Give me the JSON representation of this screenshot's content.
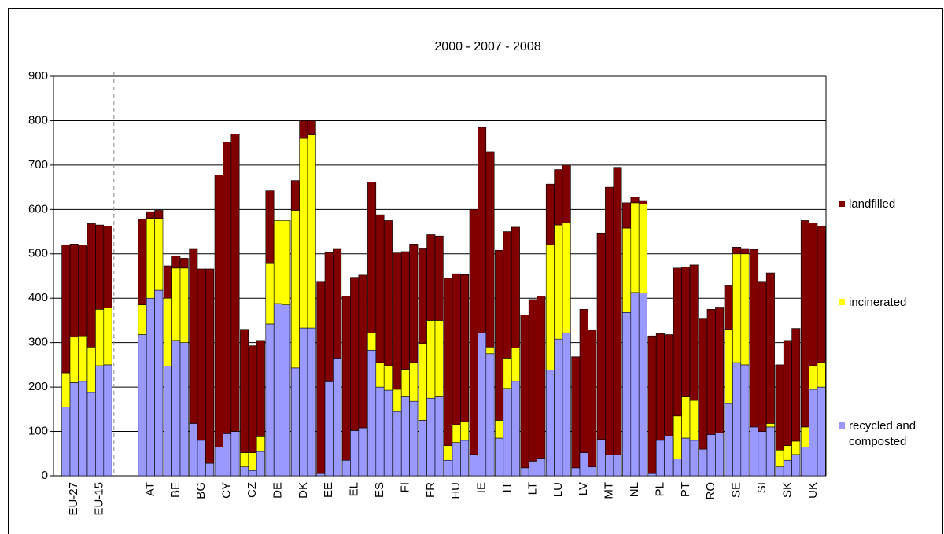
{
  "chart_data": {
    "type": "stacked_bar",
    "title": "2000 - 2007 - 2008",
    "categories": [
      "EU-27",
      "EU-15",
      null,
      "AT",
      "BE",
      "BG",
      "CY",
      "CZ",
      "DE",
      "DK",
      "EE",
      "EL",
      "ES",
      "FI",
      "FR",
      "HU",
      "IE",
      "IT",
      "LT",
      "LU",
      "LV",
      "MT",
      "NL",
      "PL",
      "PT",
      "RO",
      "SE",
      "SI",
      "SK",
      "UK"
    ],
    "series": [
      {
        "name": "recycled and composted",
        "color": "#9999ff",
        "values": [
          [
            155,
            210,
            213
          ],
          [
            188,
            248,
            250
          ],
          null,
          [
            318,
            400,
            418
          ],
          [
            247,
            305,
            300
          ],
          [
            118,
            80,
            28
          ],
          [
            65,
            95,
            100
          ],
          [
            20,
            12,
            55
          ],
          [
            342,
            388,
            385
          ],
          [
            243,
            333,
            333
          ],
          [
            5,
            212,
            265
          ],
          [
            35,
            102,
            108
          ],
          [
            283,
            200,
            193
          ],
          [
            145,
            178,
            168
          ],
          [
            125,
            175,
            178
          ],
          [
            35,
            75,
            80
          ],
          [
            48,
            322,
            275
          ],
          [
            85,
            197,
            213
          ],
          [
            18,
            33,
            40
          ],
          [
            238,
            308,
            322
          ],
          [
            18,
            52,
            20
          ],
          [
            82,
            47,
            47
          ],
          [
            368,
            413,
            412
          ],
          [
            5,
            80,
            90
          ],
          [
            38,
            85,
            80
          ],
          [
            60,
            93,
            97
          ],
          [
            163,
            255,
            250
          ],
          [
            110,
            100,
            110
          ],
          [
            20,
            35,
            48
          ],
          [
            65,
            195,
            200
          ]
        ]
      },
      {
        "name": "incinerated",
        "color": "#ffff00",
        "values": [
          [
            77,
            103,
            102
          ],
          [
            102,
            127,
            128
          ],
          null,
          [
            67,
            180,
            162
          ],
          [
            153,
            163,
            168
          ],
          [
            0,
            0,
            0
          ],
          [
            0,
            0,
            0
          ],
          [
            32,
            40,
            33
          ],
          [
            136,
            187,
            190
          ],
          [
            355,
            427,
            435
          ],
          [
            0,
            0,
            0
          ],
          [
            0,
            0,
            0
          ],
          [
            39,
            55,
            55
          ],
          [
            50,
            62,
            87
          ],
          [
            173,
            175,
            172
          ],
          [
            33,
            40,
            42
          ],
          [
            0,
            0,
            15
          ],
          [
            40,
            68,
            75
          ],
          [
            0,
            0,
            0
          ],
          [
            282,
            257,
            248
          ],
          [
            0,
            0,
            0
          ],
          [
            0,
            0,
            0
          ],
          [
            190,
            202,
            200
          ],
          [
            0,
            0,
            0
          ],
          [
            97,
            93,
            90
          ],
          [
            0,
            0,
            0
          ],
          [
            167,
            245,
            250
          ],
          [
            0,
            0,
            8
          ],
          [
            38,
            33,
            30
          ],
          [
            45,
            53,
            55
          ]
        ]
      },
      {
        "name": "landfilled",
        "color": "#800000",
        "values": [
          [
            288,
            209,
            205
          ],
          [
            278,
            190,
            184
          ],
          null,
          [
            193,
            15,
            18
          ],
          [
            73,
            27,
            22
          ],
          [
            394,
            386,
            438
          ],
          [
            613,
            657,
            670
          ],
          [
            278,
            241,
            217
          ],
          [
            164,
            0,
            0
          ],
          [
            67,
            40,
            32
          ],
          [
            433,
            291,
            247
          ],
          [
            370,
            345,
            344
          ],
          [
            340,
            333,
            327
          ],
          [
            307,
            265,
            267
          ],
          [
            215,
            193,
            190
          ],
          [
            377,
            340,
            331
          ],
          [
            552,
            463,
            440
          ],
          [
            383,
            285,
            272
          ],
          [
            344,
            364,
            365
          ],
          [
            137,
            125,
            130
          ],
          [
            250,
            323,
            308
          ],
          [
            465,
            603,
            648
          ],
          [
            57,
            13,
            8
          ],
          [
            310,
            240,
            228
          ],
          [
            333,
            292,
            305
          ],
          [
            295,
            282,
            283
          ],
          [
            98,
            15,
            12
          ],
          [
            400,
            338,
            339
          ],
          [
            192,
            237,
            254
          ],
          [
            465,
            322,
            307
          ]
        ]
      }
    ],
    "ylim": [
      0,
      900
    ],
    "yticks": [
      0,
      100,
      200,
      300,
      400,
      500,
      600,
      700,
      800,
      900
    ],
    "grid": true,
    "legend": "right"
  }
}
